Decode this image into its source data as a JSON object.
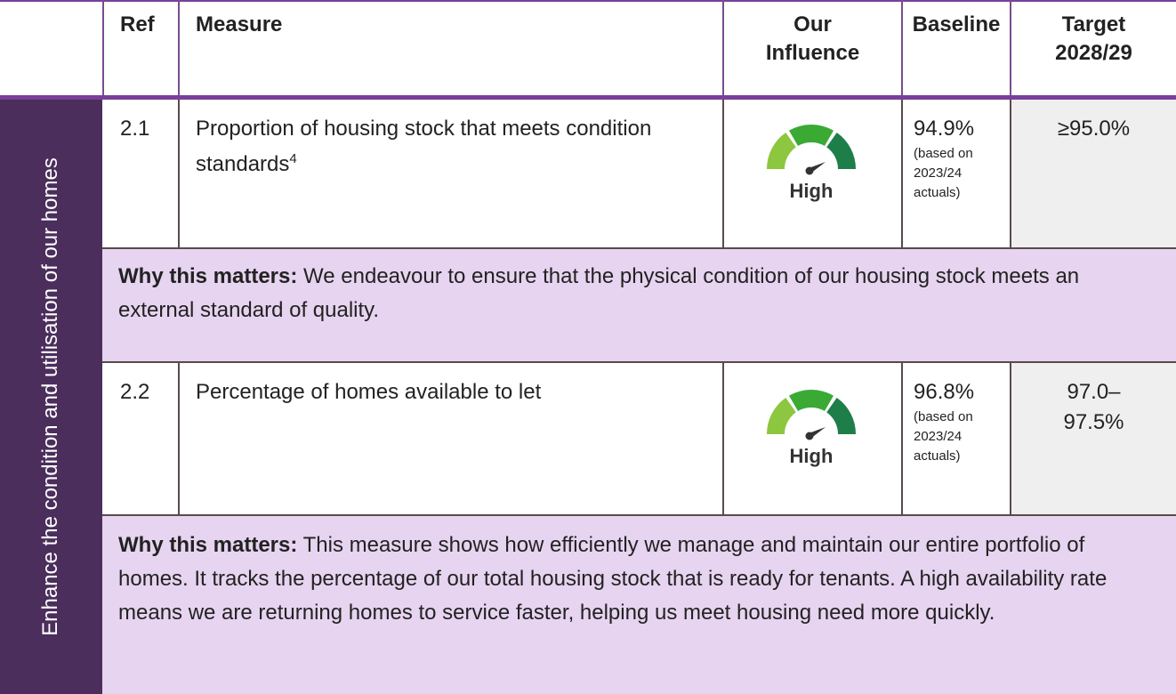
{
  "header": {
    "cells": [
      "Ref",
      "Measure",
      "Our Influence",
      "Baseline",
      "Target 2028/29"
    ]
  },
  "side_label": "Enhance the condition and utilisation of our homes",
  "rows": [
    {
      "ref": "2.1",
      "measure": "Proportion of housing stock that meets condition standards",
      "footnote": "4",
      "influence": "High",
      "baseline": "94.9%",
      "baseline_note": "(based on 2023/24 actuals)",
      "target": "≥95.0%",
      "why_label": "Why this matters:",
      "why_text": "We endeavour to ensure that the physical condition of our housing stock meets an external standard of quality."
    },
    {
      "ref": "2.2",
      "measure": "Percentage of homes available to let",
      "influence": "High",
      "baseline": "96.8%",
      "baseline_note": "(based on 2023/24 actuals)",
      "target": "97.0–97.5%",
      "why_label": "Why this matters:",
      "why_text": "This measure shows how efficiently we manage and maintain our entire portfolio of homes. It tracks the percentage of our total housing stock that is ready for tenants. A high availability rate means we are returning homes to service faster, helping us meet housing need more quickly."
    }
  ]
}
